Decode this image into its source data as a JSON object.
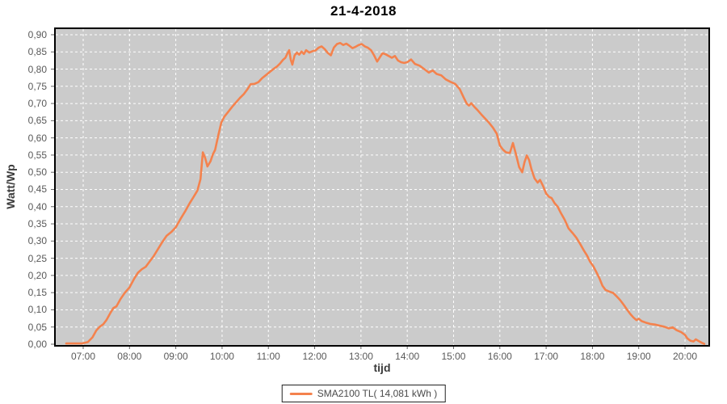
{
  "title": "21-4-2018",
  "colors": {
    "line": "#f4824d",
    "plot_bg": "#cbcbcb",
    "grid": "#ffffff",
    "plot_border": "#000000",
    "tick": "#666666",
    "tick_label": "#595959",
    "axis_title": "#3c3c3c",
    "legend_border": "#222222"
  },
  "legend": {
    "label": "SMA2100 TL( 14,081 kWh )"
  },
  "chart_data": {
    "type": "line",
    "title": "21-4-2018",
    "xlabel": "tijd",
    "ylabel": "Watt/Wp",
    "ylim": [
      0.0,
      0.9
    ],
    "y_tick_step": 0.05,
    "y_tick_labels": [
      "0,00",
      "0,05",
      "0,10",
      "0,15",
      "0,20",
      "0,25",
      "0,30",
      "0,35",
      "0,40",
      "0,45",
      "0,50",
      "0,55",
      "0,60",
      "0,65",
      "0,70",
      "0,75",
      "0,80",
      "0,85",
      "0,90"
    ],
    "x_tick_labels": [
      "07:00",
      "08:00",
      "09:00",
      "10:00",
      "11:00",
      "12:00",
      "13:00",
      "14:00",
      "15:00",
      "16:00",
      "17:00",
      "18:00",
      "19:00",
      "20:00"
    ],
    "x_range_hours": [
      6.39,
      20.53
    ],
    "grid": "white dashed on gray panel",
    "legend_position": "bottom-center",
    "series": [
      {
        "name": "SMA2100 TL( 14,081 kWh )",
        "color": "#f4824d",
        "points": [
          [
            "06:38",
            0.002
          ],
          [
            "06:48",
            0.002
          ],
          [
            "06:58",
            0.002
          ],
          [
            "07:06",
            0.006
          ],
          [
            "07:12",
            0.02
          ],
          [
            "07:17",
            0.04
          ],
          [
            "07:21",
            0.05
          ],
          [
            "07:26",
            0.058
          ],
          [
            "07:30",
            0.07
          ],
          [
            "07:35",
            0.09
          ],
          [
            "07:39",
            0.105
          ],
          [
            "07:43",
            0.11
          ],
          [
            "07:48",
            0.13
          ],
          [
            "07:54",
            0.15
          ],
          [
            "08:00",
            0.165
          ],
          [
            "08:06",
            0.19
          ],
          [
            "08:11",
            0.208
          ],
          [
            "08:16",
            0.218
          ],
          [
            "08:21",
            0.225
          ],
          [
            "08:26",
            0.24
          ],
          [
            "08:31",
            0.255
          ],
          [
            "08:37",
            0.277
          ],
          [
            "08:42",
            0.295
          ],
          [
            "08:48",
            0.315
          ],
          [
            "08:54",
            0.326
          ],
          [
            "09:00",
            0.34
          ],
          [
            "09:06",
            0.364
          ],
          [
            "09:12",
            0.386
          ],
          [
            "09:18",
            0.41
          ],
          [
            "09:23",
            0.428
          ],
          [
            "09:28",
            0.447
          ],
          [
            "09:32",
            0.48
          ],
          [
            "09:35",
            0.558
          ],
          [
            "09:38",
            0.542
          ],
          [
            "09:41",
            0.517
          ],
          [
            "09:45",
            0.532
          ],
          [
            "09:48",
            0.552
          ],
          [
            "09:51",
            0.565
          ],
          [
            "09:55",
            0.607
          ],
          [
            "09:59",
            0.645
          ],
          [
            "10:03",
            0.662
          ],
          [
            "10:08",
            0.676
          ],
          [
            "10:13",
            0.69
          ],
          [
            "10:18",
            0.703
          ],
          [
            "10:23",
            0.716
          ],
          [
            "10:28",
            0.727
          ],
          [
            "10:33",
            0.742
          ],
          [
            "10:37",
            0.756
          ],
          [
            "10:42",
            0.757
          ],
          [
            "10:47",
            0.762
          ],
          [
            "10:52",
            0.774
          ],
          [
            "10:57",
            0.783
          ],
          [
            "11:02",
            0.792
          ],
          [
            "11:07",
            0.801
          ],
          [
            "11:11",
            0.807
          ],
          [
            "11:15",
            0.816
          ],
          [
            "11:19",
            0.827
          ],
          [
            "11:22",
            0.833
          ],
          [
            "11:25",
            0.847
          ],
          [
            "11:27",
            0.855
          ],
          [
            "11:29",
            0.828
          ],
          [
            "11:31",
            0.813
          ],
          [
            "11:34",
            0.84
          ],
          [
            "11:37",
            0.848
          ],
          [
            "11:40",
            0.842
          ],
          [
            "11:43",
            0.851
          ],
          [
            "11:46",
            0.844
          ],
          [
            "11:49",
            0.855
          ],
          [
            "11:53",
            0.848
          ],
          [
            "11:57",
            0.852
          ],
          [
            "12:01",
            0.854
          ],
          [
            "12:05",
            0.862
          ],
          [
            "12:09",
            0.866
          ],
          [
            "12:13",
            0.858
          ],
          [
            "12:17",
            0.847
          ],
          [
            "12:21",
            0.84
          ],
          [
            "12:25",
            0.863
          ],
          [
            "12:29",
            0.873
          ],
          [
            "12:33",
            0.876
          ],
          [
            "12:37",
            0.87
          ],
          [
            "12:41",
            0.874
          ],
          [
            "12:45",
            0.868
          ],
          [
            "12:49",
            0.861
          ],
          [
            "12:53",
            0.865
          ],
          [
            "12:57",
            0.87
          ],
          [
            "13:01",
            0.873
          ],
          [
            "13:05",
            0.866
          ],
          [
            "13:09",
            0.862
          ],
          [
            "13:13",
            0.855
          ],
          [
            "13:17",
            0.84
          ],
          [
            "13:21",
            0.822
          ],
          [
            "13:25",
            0.836
          ],
          [
            "13:28",
            0.846
          ],
          [
            "13:32",
            0.843
          ],
          [
            "13:36",
            0.838
          ],
          [
            "13:40",
            0.833
          ],
          [
            "13:44",
            0.838
          ],
          [
            "13:48",
            0.825
          ],
          [
            "13:52",
            0.82
          ],
          [
            "13:56",
            0.818
          ],
          [
            "14:00",
            0.82
          ],
          [
            "14:05",
            0.828
          ],
          [
            "14:10",
            0.815
          ],
          [
            "14:16",
            0.81
          ],
          [
            "14:22",
            0.8
          ],
          [
            "14:28",
            0.79
          ],
          [
            "14:33",
            0.796
          ],
          [
            "14:38",
            0.786
          ],
          [
            "14:44",
            0.782
          ],
          [
            "14:50",
            0.77
          ],
          [
            "14:56",
            0.763
          ],
          [
            "15:02",
            0.757
          ],
          [
            "15:08",
            0.742
          ],
          [
            "15:13",
            0.718
          ],
          [
            "15:17",
            0.7
          ],
          [
            "15:20",
            0.694
          ],
          [
            "15:23",
            0.701
          ],
          [
            "15:27",
            0.69
          ],
          [
            "15:31",
            0.681
          ],
          [
            "15:36",
            0.668
          ],
          [
            "15:41",
            0.656
          ],
          [
            "15:46",
            0.644
          ],
          [
            "15:51",
            0.63
          ],
          [
            "15:56",
            0.612
          ],
          [
            "16:00",
            0.578
          ],
          [
            "16:04",
            0.566
          ],
          [
            "16:08",
            0.558
          ],
          [
            "16:13",
            0.556
          ],
          [
            "16:17",
            0.585
          ],
          [
            "16:21",
            0.552
          ],
          [
            "16:25",
            0.515
          ],
          [
            "16:29",
            0.5
          ],
          [
            "16:32",
            0.53
          ],
          [
            "16:35",
            0.549
          ],
          [
            "16:38",
            0.535
          ],
          [
            "16:41",
            0.508
          ],
          [
            "16:45",
            0.482
          ],
          [
            "16:49",
            0.47
          ],
          [
            "16:52",
            0.478
          ],
          [
            "16:56",
            0.46
          ],
          [
            "17:00",
            0.438
          ],
          [
            "17:04",
            0.428
          ],
          [
            "17:07",
            0.425
          ],
          [
            "17:11",
            0.41
          ],
          [
            "17:15",
            0.4
          ],
          [
            "17:19",
            0.382
          ],
          [
            "17:24",
            0.362
          ],
          [
            "17:29",
            0.337
          ],
          [
            "17:34",
            0.324
          ],
          [
            "17:39",
            0.31
          ],
          [
            "17:44",
            0.292
          ],
          [
            "17:49",
            0.272
          ],
          [
            "17:53",
            0.258
          ],
          [
            "17:57",
            0.24
          ],
          [
            "18:01",
            0.227
          ],
          [
            "18:05",
            0.21
          ],
          [
            "18:09",
            0.192
          ],
          [
            "18:13",
            0.17
          ],
          [
            "18:17",
            0.158
          ],
          [
            "18:22",
            0.153
          ],
          [
            "18:27",
            0.149
          ],
          [
            "18:31",
            0.14
          ],
          [
            "18:36",
            0.128
          ],
          [
            "18:41",
            0.113
          ],
          [
            "18:45",
            0.1
          ],
          [
            "18:49",
            0.088
          ],
          [
            "18:53",
            0.078
          ],
          [
            "18:57",
            0.07
          ],
          [
            "19:00",
            0.074
          ],
          [
            "19:04",
            0.067
          ],
          [
            "19:09",
            0.063
          ],
          [
            "19:15",
            0.059
          ],
          [
            "19:21",
            0.057
          ],
          [
            "19:27",
            0.054
          ],
          [
            "19:33",
            0.051
          ],
          [
            "19:39",
            0.046
          ],
          [
            "19:44",
            0.049
          ],
          [
            "19:49",
            0.041
          ],
          [
            "19:55",
            0.035
          ],
          [
            "20:00",
            0.027
          ],
          [
            "20:03",
            0.017
          ],
          [
            "20:07",
            0.01
          ],
          [
            "20:11",
            0.008
          ],
          [
            "20:14",
            0.014
          ],
          [
            "20:18",
            0.009
          ],
          [
            "20:22",
            0.004
          ],
          [
            "20:25",
            0.001
          ]
        ]
      }
    ]
  }
}
